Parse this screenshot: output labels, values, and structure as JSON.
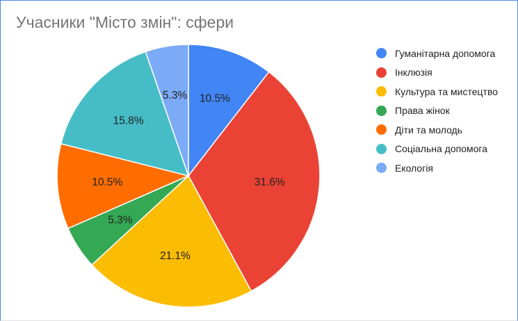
{
  "chart_data": {
    "type": "pie",
    "title": "Учасники \"Місто змін\": сфери",
    "legend_position": "right",
    "categories": [
      "Гуманітарна допомога",
      "Інклюзія",
      "Культура та мистецтво",
      "Права жінок",
      "Діти та молодь",
      "Соціальна допомога",
      "Екологія"
    ],
    "values": [
      10.5,
      31.6,
      21.1,
      5.3,
      10.5,
      15.8,
      5.3
    ],
    "value_labels": [
      "10.5%",
      "31.6%",
      "21.1%",
      "5.3%",
      "10.5%",
      "15.8%",
      "5.3%"
    ],
    "colors": [
      "#4285f4",
      "#ea4335",
      "#fbbc04",
      "#34a853",
      "#ff6d01",
      "#46bdc6",
      "#7baaf7"
    ]
  }
}
